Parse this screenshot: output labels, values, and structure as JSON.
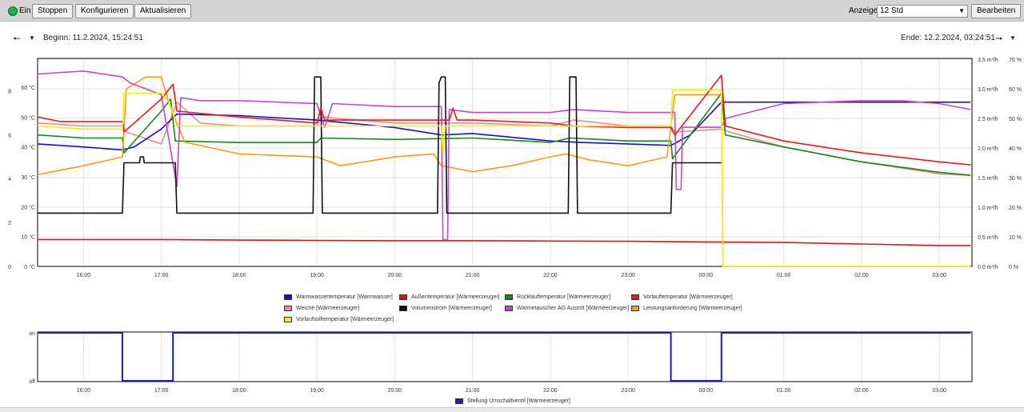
{
  "toolbar": {
    "status_label": "Ein",
    "stop_label": "Stoppen",
    "configure_label": "Konfigurieren",
    "refresh_label": "Aktualisieren",
    "display_label": "Anzeige",
    "display_value": "12 Std",
    "edit_label": "Bearbeiten"
  },
  "nav": {
    "begin": "Beginn: 11.2.2024, 15:24:51",
    "end": "Ende: 12.2.2024, 03:24:51"
  },
  "colors": {
    "warmwasser": "#1010d0",
    "aussen": "#e81010",
    "ruecklauf": "#138a13",
    "vorlauf": "#f01818",
    "weiche": "#f08a84",
    "volumen": "#111111",
    "waermetauscher": "#cc44cc",
    "leistung": "#ff9a10",
    "vorlaufsoll": "#f5f000",
    "umschalt": "#1a1ad0"
  },
  "chart_data": [
    {
      "type": "line",
      "x_unit": "time",
      "x_ticks": [
        "16:00",
        "17:00",
        "18:00",
        "19:00",
        "20:00",
        "21:00",
        "22:00",
        "23:00",
        "00:00",
        "01:00",
        "02:00",
        "03:00"
      ],
      "y_left_small_ticks": [
        "0",
        "2",
        "4",
        "6",
        "8"
      ],
      "y_left_temp_ticks": [
        "0 °C",
        "10 °C",
        "20 °C",
        "30 °C",
        "40 °C",
        "50 °C",
        "60 °C"
      ],
      "y_right_flow_ticks": [
        "0.0 m³/h",
        "0.5 m³/h",
        "1.0 m³/h",
        "1.5 m³/h",
        "2.0 m³/h",
        "2.5 m³/h",
        "3.0 m³/h",
        "3.5 m³/h"
      ],
      "y_right_percent_ticks": [
        "0 %",
        "10 %",
        "20 %",
        "30 %",
        "40 %",
        "50 %",
        "60 %",
        "70 %"
      ],
      "ylim_temp": [
        0,
        60
      ],
      "ylim_flow": [
        0,
        3.5
      ],
      "ylim_percent": [
        0,
        70
      ],
      "grid": true,
      "legend_position": "bottom",
      "series": [
        {
          "name": "Warmwassertemperatur [Warmwasser]",
          "color_key": "warmwasser",
          "axis": "temp",
          "points": [
            [
              15.41,
              41
            ],
            [
              16.0,
              40
            ],
            [
              16.5,
              39
            ],
            [
              16.65,
              40
            ],
            [
              17.0,
              46
            ],
            [
              17.2,
              51
            ],
            [
              18.0,
              50.5
            ],
            [
              19.0,
              49
            ],
            [
              20.0,
              46.5
            ],
            [
              20.6,
              44
            ],
            [
              21.0,
              44.5
            ],
            [
              22.0,
              42
            ],
            [
              22.4,
              41.5
            ],
            [
              23.0,
              41
            ],
            [
              23.55,
              40.5
            ],
            [
              23.8,
              44
            ],
            [
              24.2,
              55
            ],
            [
              25.0,
              55
            ],
            [
              26.0,
              55
            ],
            [
              27.4,
              55
            ]
          ]
        },
        {
          "name": "Außentemperatur [Wärmeerzeuger]",
          "color_key": "aussen",
          "axis": "temp",
          "points": [
            [
              15.41,
              9
            ],
            [
              16.0,
              9
            ],
            [
              17.0,
              9
            ],
            [
              18.0,
              8.8
            ],
            [
              19.0,
              8.7
            ],
            [
              20.0,
              8.6
            ],
            [
              21.0,
              8.6
            ],
            [
              22.0,
              8.5
            ],
            [
              23.0,
              8.4
            ],
            [
              24.0,
              8.2
            ],
            [
              25.0,
              8
            ],
            [
              26.0,
              7.5
            ],
            [
              27.0,
              7
            ],
            [
              27.4,
              7
            ]
          ]
        },
        {
          "name": "Rücklauftemperatur [Wärmeerzeuger]",
          "color_key": "ruecklauf",
          "axis": "temp",
          "points": [
            [
              15.41,
              44
            ],
            [
              16.0,
              43
            ],
            [
              16.5,
              43
            ],
            [
              16.52,
              38
            ],
            [
              17.0,
              52
            ],
            [
              17.12,
              56
            ],
            [
              17.18,
              42
            ],
            [
              18.0,
              41.5
            ],
            [
              19.0,
              41.5
            ],
            [
              19.05,
              43
            ],
            [
              20.0,
              42.5
            ],
            [
              21.0,
              43
            ],
            [
              22.0,
              41.5
            ],
            [
              22.25,
              43
            ],
            [
              23.0,
              42
            ],
            [
              23.55,
              42
            ],
            [
              23.57,
              36
            ],
            [
              24.2,
              58
            ],
            [
              24.25,
              44
            ],
            [
              25.0,
              40
            ],
            [
              26.0,
              35
            ],
            [
              27.0,
              31.5
            ],
            [
              27.4,
              30.5
            ]
          ]
        },
        {
          "name": "Vorlauftemperatur [Wärmeerzeuger]",
          "color_key": "vorlauf",
          "axis": "temp",
          "points": [
            [
              15.41,
              50
            ],
            [
              15.7,
              48.5
            ],
            [
              16.0,
              48.5
            ],
            [
              16.5,
              48.5
            ],
            [
              16.52,
              45
            ],
            [
              17.0,
              56
            ],
            [
              17.15,
              61
            ],
            [
              17.2,
              52
            ],
            [
              18.0,
              50
            ],
            [
              19.0,
              48
            ],
            [
              19.05,
              53
            ],
            [
              19.1,
              49
            ],
            [
              20.0,
              49
            ],
            [
              20.7,
              49
            ],
            [
              20.75,
              53
            ],
            [
              20.8,
              49
            ],
            [
              21.0,
              49
            ],
            [
              22.0,
              48
            ],
            [
              22.3,
              47
            ],
            [
              23.0,
              46.5
            ],
            [
              23.55,
              46.5
            ],
            [
              23.6,
              44
            ],
            [
              24.2,
              64
            ],
            [
              24.25,
              47
            ],
            [
              25.0,
              42
            ],
            [
              26.0,
              38
            ],
            [
              27.0,
              35
            ],
            [
              27.4,
              34
            ]
          ]
        },
        {
          "name": "Weiche [Wärmeerzeuger]",
          "color_key": "weiche",
          "axis": "temp",
          "points": [
            [
              15.41,
              48
            ],
            [
              16.0,
              47
            ],
            [
              16.5,
              47
            ],
            [
              16.55,
              45
            ],
            [
              17.0,
              41
            ],
            [
              17.2,
              55
            ],
            [
              17.5,
              48
            ],
            [
              18.0,
              47
            ],
            [
              19.0,
              47
            ],
            [
              19.05,
              50
            ],
            [
              20.0,
              48
            ],
            [
              21.0,
              48
            ],
            [
              22.0,
              47
            ],
            [
              22.3,
              49
            ],
            [
              23.0,
              47
            ],
            [
              23.55,
              47
            ],
            [
              23.6,
              45
            ],
            [
              24.2,
              46
            ],
            [
              24.3,
              45
            ],
            [
              25.0,
              40
            ],
            [
              26.0,
              35
            ],
            [
              27.0,
              31
            ],
            [
              27.4,
              30.5
            ]
          ]
        },
        {
          "name": "Volumenstrom [Wärmeerzeuger]",
          "color_key": "volumen",
          "axis": "flow",
          "points": [
            [
              15.41,
              0.9
            ],
            [
              16.5,
              0.9
            ],
            [
              16.52,
              1.75
            ],
            [
              16.72,
              1.75
            ],
            [
              16.73,
              1.85
            ],
            [
              16.77,
              1.85
            ],
            [
              16.78,
              1.75
            ],
            [
              17.18,
              1.75
            ],
            [
              17.2,
              0.9
            ],
            [
              18.95,
              0.9
            ],
            [
              18.97,
              3.2
            ],
            [
              19.05,
              3.2
            ],
            [
              19.07,
              0.9
            ],
            [
              20.55,
              0.9
            ],
            [
              20.57,
              3.1
            ],
            [
              20.6,
              3.2
            ],
            [
              20.65,
              3.2
            ],
            [
              20.67,
              0.9
            ],
            [
              22.23,
              0.9
            ],
            [
              22.25,
              3.2
            ],
            [
              22.33,
              3.2
            ],
            [
              22.35,
              0.9
            ],
            [
              23.55,
              0.9
            ],
            [
              23.57,
              1.75
            ],
            [
              24.2,
              1.75
            ]
          ]
        },
        {
          "name": "Wärmetauscher AG Austritt [Wärmeerzeuger]",
          "color_key": "waermetauscher",
          "axis": "percent",
          "points": [
            [
              15.41,
              65
            ],
            [
              16.0,
              66
            ],
            [
              16.5,
              64
            ],
            [
              16.6,
              62
            ],
            [
              17.0,
              58
            ],
            [
              17.2,
              27
            ],
            [
              17.25,
              57
            ],
            [
              17.5,
              56
            ],
            [
              18.0,
              56
            ],
            [
              19.0,
              55
            ],
            [
              19.1,
              47
            ],
            [
              19.2,
              55
            ],
            [
              20.0,
              54
            ],
            [
              20.6,
              54
            ],
            [
              20.62,
              9
            ],
            [
              20.68,
              9
            ],
            [
              20.7,
              53
            ],
            [
              21.0,
              52
            ],
            [
              22.0,
              52
            ],
            [
              22.3,
              53
            ],
            [
              23.0,
              52
            ],
            [
              23.6,
              52
            ],
            [
              23.62,
              26
            ],
            [
              23.68,
              26
            ],
            [
              23.7,
              47
            ],
            [
              24.2,
              47
            ],
            [
              24.25,
              50
            ],
            [
              25.0,
              55
            ],
            [
              26.0,
              56
            ],
            [
              26.5,
              56
            ],
            [
              27.0,
              55
            ],
            [
              27.4,
              53
            ]
          ]
        },
        {
          "name": "Leistungsanforderung [Wärmeerzeuger]",
          "color_key": "leistung",
          "axis": "percent",
          "points": [
            [
              15.41,
              31
            ],
            [
              16.0,
              34
            ],
            [
              16.5,
              37
            ],
            [
              16.55,
              60
            ],
            [
              16.8,
              64
            ],
            [
              17.0,
              64
            ],
            [
              17.1,
              55
            ],
            [
              17.3,
              42
            ],
            [
              18.0,
              38
            ],
            [
              19.0,
              37
            ],
            [
              19.3,
              34
            ],
            [
              20.0,
              37
            ],
            [
              20.5,
              38
            ],
            [
              20.6,
              34
            ],
            [
              21.0,
              32
            ],
            [
              21.5,
              34
            ],
            [
              22.0,
              37
            ],
            [
              22.2,
              38
            ],
            [
              22.5,
              36
            ],
            [
              23.0,
              34
            ],
            [
              23.5,
              37
            ],
            [
              23.6,
              58
            ],
            [
              24.0,
              58
            ],
            [
              24.2,
              58
            ],
            [
              24.22,
              0
            ],
            [
              27.4,
              0
            ]
          ]
        },
        {
          "name": "Vorlaufsolltemperatur [Wärmeerzeuger]",
          "color_key": "vorlaufsoll",
          "axis": "temp",
          "points": [
            [
              15.41,
              47
            ],
            [
              16.0,
              46
            ],
            [
              16.5,
              46
            ],
            [
              16.52,
              58
            ],
            [
              16.8,
              58
            ],
            [
              17.0,
              58
            ],
            [
              17.1,
              55
            ],
            [
              17.2,
              47
            ],
            [
              18.0,
              47
            ],
            [
              19.0,
              47
            ],
            [
              20.0,
              47
            ],
            [
              20.6,
              47
            ],
            [
              20.62,
              38
            ],
            [
              20.65,
              47
            ],
            [
              21.0,
              47
            ],
            [
              22.0,
              47
            ],
            [
              23.0,
              47
            ],
            [
              23.55,
              47
            ],
            [
              23.57,
              59
            ],
            [
              24.2,
              59
            ],
            [
              24.22,
              0
            ],
            [
              27.4,
              0
            ]
          ]
        }
      ]
    },
    {
      "type": "line",
      "x_ticks": [
        "16:00",
        "17:00",
        "18:00",
        "19:00",
        "20:00",
        "21:00",
        "22:00",
        "23:00",
        "00:00",
        "01:00",
        "02:00",
        "03:00"
      ],
      "y_ticks": [
        "on",
        "off"
      ],
      "series": [
        {
          "name": "Stellung Umschaltventil [Wärmeerzeuger]",
          "color_key": "umschalt",
          "points": [
            [
              15.41,
              1
            ],
            [
              16.5,
              1
            ],
            [
              16.5,
              0
            ],
            [
              17.15,
              0
            ],
            [
              17.15,
              1
            ],
            [
              23.55,
              1
            ],
            [
              23.55,
              0
            ],
            [
              24.2,
              0
            ],
            [
              24.2,
              1
            ],
            [
              27.4,
              1
            ]
          ]
        }
      ]
    }
  ]
}
